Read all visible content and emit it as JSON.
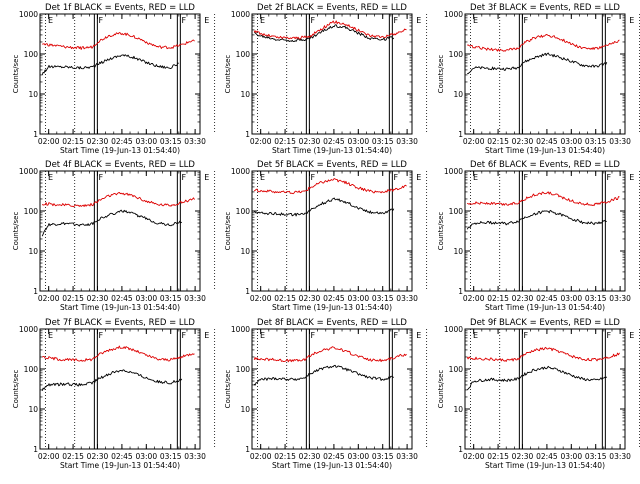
{
  "chart_data": [
    {
      "type": "line",
      "title": "Det 1f BLACK = Events, RED = LLD",
      "xlabel": "Start Time (19-Jun-13 01:54:40)",
      "ylabel": "Counts/sec",
      "x_ticks": [
        "02:00",
        "02:15",
        "02:30",
        "02:45",
        "03:00",
        "03:15",
        "03:30"
      ],
      "y_ticks": [
        "1",
        "10",
        "100",
        "1000"
      ],
      "y_scale": "log",
      "ylim": [
        1,
        1000
      ],
      "flag_labels": [
        "E",
        "F",
        "F",
        "E"
      ],
      "series": [
        {
          "name": "Events",
          "color": "#000000",
          "x": [
            "01:56",
            "02:00",
            "02:10",
            "02:20",
            "02:27",
            "02:30",
            "02:37",
            "02:45",
            "02:52",
            "03:00",
            "03:07",
            "03:15",
            "03:20"
          ],
          "values": [
            32,
            48,
            48,
            45,
            48,
            55,
            75,
            95,
            82,
            62,
            50,
            45,
            60
          ]
        },
        {
          "name": "LLD",
          "color": "#dd0000",
          "x": [
            "01:56",
            "02:00",
            "02:10",
            "02:20",
            "02:27",
            "02:30",
            "02:37",
            "02:45",
            "02:52",
            "03:00",
            "03:07",
            "03:15",
            "03:22",
            "03:30"
          ],
          "values": [
            180,
            170,
            150,
            140,
            150,
            200,
            290,
            330,
            280,
            200,
            150,
            145,
            170,
            230
          ]
        }
      ]
    },
    {
      "type": "line",
      "title": "Det 2f BLACK = Events, RED = LLD",
      "xlabel": "Start Time (19-Jun-13 01:54:40)",
      "ylabel": "Counts/sec",
      "x_ticks": [
        "02:00",
        "02:15",
        "02:30",
        "02:45",
        "03:00",
        "03:15",
        "03:30"
      ],
      "y_ticks": [
        "1",
        "10",
        "100",
        "1000"
      ],
      "y_scale": "log",
      "ylim": [
        1,
        1000
      ],
      "flag_labels": [
        "E",
        "F",
        "F",
        "E"
      ],
      "series": [
        {
          "name": "Events",
          "color": "#000000",
          "x": [
            "01:56",
            "02:00",
            "02:10",
            "02:20",
            "02:30",
            "02:37",
            "02:45",
            "02:52",
            "03:00",
            "03:07",
            "03:15",
            "03:22"
          ],
          "values": [
            330,
            280,
            230,
            220,
            240,
            350,
            520,
            460,
            330,
            250,
            230,
            260
          ]
        },
        {
          "name": "LLD",
          "color": "#dd0000",
          "x": [
            "01:56",
            "02:00",
            "02:10",
            "02:20",
            "02:30",
            "02:37",
            "02:45",
            "02:52",
            "03:00",
            "03:07",
            "03:15",
            "03:22",
            "03:30"
          ],
          "values": [
            380,
            320,
            260,
            250,
            270,
            420,
            640,
            560,
            390,
            290,
            270,
            310,
            420
          ]
        }
      ]
    },
    {
      "type": "line",
      "title": "Det 3f BLACK = Events, RED = LLD",
      "xlabel": "Start Time (19-Jun-13 01:54:40)",
      "ylabel": "Counts/sec",
      "x_ticks": [
        "02:00",
        "02:15",
        "02:30",
        "02:45",
        "03:00",
        "03:15",
        "03:30"
      ],
      "y_ticks": [
        "1",
        "10",
        "100",
        "1000"
      ],
      "y_scale": "log",
      "ylim": [
        1,
        1000
      ],
      "flag_labels": [
        "E",
        "F",
        "F",
        "E"
      ],
      "series": [
        {
          "name": "Events",
          "color": "#000000",
          "x": [
            "01:56",
            "02:00",
            "02:10",
            "02:20",
            "02:27",
            "02:30",
            "02:37",
            "02:45",
            "02:52",
            "03:00",
            "03:07",
            "03:15",
            "03:22"
          ],
          "values": [
            33,
            45,
            44,
            42,
            45,
            60,
            80,
            100,
            85,
            65,
            52,
            48,
            60
          ]
        },
        {
          "name": "LLD",
          "color": "#dd0000",
          "x": [
            "01:56",
            "02:00",
            "02:10",
            "02:20",
            "02:27",
            "02:30",
            "02:37",
            "02:45",
            "02:52",
            "03:00",
            "03:07",
            "03:15",
            "03:22",
            "03:30"
          ],
          "values": [
            160,
            150,
            130,
            125,
            135,
            180,
            250,
            300,
            250,
            180,
            140,
            135,
            160,
            220
          ]
        }
      ]
    },
    {
      "type": "line",
      "title": "Det 4f BLACK = Events, RED = LLD",
      "xlabel": "Start Time (19-Jun-13 01:54:40)",
      "ylabel": "Counts/sec",
      "x_ticks": [
        "02:00",
        "02:15",
        "02:30",
        "02:45",
        "03:00",
        "03:15",
        "03:30"
      ],
      "y_ticks": [
        "1",
        "10",
        "100",
        "1000"
      ],
      "y_scale": "log",
      "ylim": [
        1,
        1000
      ],
      "flag_labels": [
        "E",
        "F",
        "F",
        "E"
      ],
      "series": [
        {
          "name": "Events",
          "color": "#000000",
          "x": [
            "01:56",
            "02:00",
            "02:10",
            "02:20",
            "02:27",
            "02:30",
            "02:37",
            "02:45",
            "02:52",
            "03:00",
            "03:07",
            "03:15",
            "03:22"
          ],
          "values": [
            25,
            45,
            48,
            45,
            48,
            60,
            80,
            100,
            85,
            65,
            50,
            45,
            55
          ]
        },
        {
          "name": "LLD",
          "color": "#dd0000",
          "x": [
            "01:56",
            "02:00",
            "02:10",
            "02:20",
            "02:27",
            "02:30",
            "02:37",
            "02:45",
            "02:52",
            "03:00",
            "03:07",
            "03:15",
            "03:22",
            "03:30"
          ],
          "values": [
            150,
            150,
            140,
            135,
            145,
            175,
            240,
            280,
            240,
            175,
            145,
            140,
            165,
            210
          ]
        }
      ]
    },
    {
      "type": "line",
      "title": "Det 5f BLACK = Events, RED = LLD",
      "xlabel": "Start Time (19-Jun-13 01:54:40)",
      "ylabel": "Counts/sec",
      "x_ticks": [
        "02:00",
        "02:15",
        "02:30",
        "02:45",
        "03:00",
        "03:15",
        "03:30"
      ],
      "y_ticks": [
        "1",
        "10",
        "100",
        "1000"
      ],
      "y_scale": "log",
      "ylim": [
        1,
        1000
      ],
      "flag_labels": [
        "E",
        "F",
        "F",
        "E"
      ],
      "series": [
        {
          "name": "Events",
          "color": "#000000",
          "x": [
            "01:56",
            "02:00",
            "02:10",
            "02:20",
            "02:27",
            "02:30",
            "02:37",
            "02:45",
            "02:52",
            "03:00",
            "03:07",
            "03:15",
            "03:22"
          ],
          "values": [
            95,
            90,
            85,
            80,
            85,
            100,
            150,
            200,
            170,
            120,
            95,
            90,
            110
          ]
        },
        {
          "name": "LLD",
          "color": "#dd0000",
          "x": [
            "01:56",
            "02:00",
            "02:10",
            "02:20",
            "02:27",
            "02:30",
            "02:37",
            "02:45",
            "02:52",
            "03:00",
            "03:07",
            "03:15",
            "03:22",
            "03:30"
          ],
          "values": [
            340,
            320,
            300,
            290,
            310,
            380,
            520,
            620,
            520,
            380,
            310,
            300,
            340,
            430
          ]
        }
      ]
    },
    {
      "type": "line",
      "title": "Det 6f BLACK = Events, RED = LLD",
      "xlabel": "Start Time (19-Jun-13 01:54:40)",
      "ylabel": "Counts/sec",
      "x_ticks": [
        "02:00",
        "02:15",
        "02:30",
        "02:45",
        "03:00",
        "03:15",
        "03:30"
      ],
      "y_ticks": [
        "1",
        "10",
        "100",
        "1000"
      ],
      "y_scale": "log",
      "ylim": [
        1,
        1000
      ],
      "flag_labels": [
        "E",
        "F",
        "F",
        "E"
      ],
      "series": [
        {
          "name": "Events",
          "color": "#000000",
          "x": [
            "01:56",
            "02:00",
            "02:10",
            "02:20",
            "02:27",
            "02:30",
            "02:37",
            "02:45",
            "02:52",
            "03:00",
            "03:07",
            "03:15",
            "03:22"
          ],
          "values": [
            35,
            50,
            52,
            48,
            55,
            65,
            85,
            100,
            85,
            65,
            52,
            48,
            58
          ]
        },
        {
          "name": "LLD",
          "color": "#dd0000",
          "x": [
            "01:56",
            "02:00",
            "02:10",
            "02:20",
            "02:27",
            "02:30",
            "02:37",
            "02:45",
            "02:52",
            "03:00",
            "03:07",
            "03:15",
            "03:22",
            "03:30"
          ],
          "values": [
            150,
            160,
            155,
            145,
            160,
            190,
            250,
            290,
            240,
            180,
            150,
            145,
            170,
            220
          ]
        }
      ]
    },
    {
      "type": "line",
      "title": "Det 7f BLACK = Events, RED = LLD",
      "xlabel": "Start Time (19-Jun-13 01:54:40)",
      "ylabel": "Counts/sec",
      "x_ticks": [
        "02:00",
        "02:15",
        "02:30",
        "02:45",
        "03:00",
        "03:15",
        "03:30"
      ],
      "y_ticks": [
        "1",
        "10",
        "100",
        "1000"
      ],
      "y_scale": "log",
      "ylim": [
        1,
        1000
      ],
      "flag_labels": [
        "E",
        "F",
        "F",
        "E"
      ],
      "series": [
        {
          "name": "Events",
          "color": "#000000",
          "x": [
            "01:56",
            "02:00",
            "02:10",
            "02:20",
            "02:27",
            "02:30",
            "02:37",
            "02:45",
            "02:52",
            "03:00",
            "03:07",
            "03:15",
            "03:22"
          ],
          "values": [
            30,
            40,
            42,
            40,
            45,
            55,
            75,
            95,
            80,
            60,
            48,
            45,
            55
          ]
        },
        {
          "name": "LLD",
          "color": "#dd0000",
          "x": [
            "01:56",
            "02:00",
            "02:10",
            "02:20",
            "02:27",
            "02:30",
            "02:37",
            "02:45",
            "02:52",
            "03:00",
            "03:07",
            "03:15",
            "03:22",
            "03:30"
          ],
          "values": [
            200,
            190,
            170,
            165,
            175,
            220,
            300,
            360,
            300,
            220,
            175,
            170,
            200,
            260
          ]
        }
      ]
    },
    {
      "type": "line",
      "title": "Det 8f BLACK = Events, RED = LLD",
      "xlabel": "Start Time (19-Jun-13 01:54:40)",
      "ylabel": "Counts/sec",
      "x_ticks": [
        "02:00",
        "02:15",
        "02:30",
        "02:45",
        "03:00",
        "03:15",
        "03:30"
      ],
      "y_ticks": [
        "1",
        "10",
        "100",
        "1000"
      ],
      "y_scale": "log",
      "ylim": [
        1,
        1000
      ],
      "flag_labels": [
        "E",
        "F",
        "F",
        "E"
      ],
      "series": [
        {
          "name": "Events",
          "color": "#000000",
          "x": [
            "01:56",
            "02:00",
            "02:10",
            "02:20",
            "02:27",
            "02:30",
            "02:37",
            "02:45",
            "02:52",
            "03:00",
            "03:07",
            "03:15",
            "03:22"
          ],
          "values": [
            40,
            55,
            58,
            55,
            60,
            75,
            100,
            120,
            100,
            75,
            60,
            55,
            65
          ]
        },
        {
          "name": "LLD",
          "color": "#dd0000",
          "x": [
            "01:56",
            "02:00",
            "02:10",
            "02:20",
            "02:27",
            "02:30",
            "02:37",
            "02:45",
            "02:52",
            "03:00",
            "03:07",
            "03:15",
            "03:22",
            "03:30"
          ],
          "values": [
            180,
            180,
            170,
            160,
            170,
            210,
            290,
            340,
            280,
            210,
            170,
            165,
            190,
            240
          ]
        }
      ]
    },
    {
      "type": "line",
      "title": "Det 9f BLACK = Events, RED = LLD",
      "xlabel": "Start Time (19-Jun-13 01:54:40)",
      "ylabel": "Counts/sec",
      "x_ticks": [
        "02:00",
        "02:15",
        "02:30",
        "02:45",
        "03:00",
        "03:15",
        "03:30"
      ],
      "y_ticks": [
        "1",
        "10",
        "100",
        "1000"
      ],
      "y_scale": "log",
      "ylim": [
        1,
        1000
      ],
      "flag_labels": [
        "E",
        "F",
        "F",
        "E"
      ],
      "series": [
        {
          "name": "Events",
          "color": "#000000",
          "x": [
            "01:56",
            "02:00",
            "02:10",
            "02:20",
            "02:27",
            "02:30",
            "02:37",
            "02:45",
            "02:52",
            "03:00",
            "03:07",
            "03:15",
            "03:22"
          ],
          "values": [
            30,
            50,
            55,
            52,
            56,
            70,
            95,
            110,
            95,
            70,
            56,
            52,
            62
          ]
        },
        {
          "name": "LLD",
          "color": "#dd0000",
          "x": [
            "01:56",
            "02:00",
            "02:10",
            "02:20",
            "02:27",
            "02:30",
            "02:37",
            "02:45",
            "02:52",
            "03:00",
            "03:07",
            "03:15",
            "03:22",
            "03:30"
          ],
          "values": [
            190,
            185,
            175,
            165,
            175,
            215,
            290,
            330,
            280,
            210,
            175,
            170,
            195,
            245
          ]
        }
      ]
    }
  ]
}
